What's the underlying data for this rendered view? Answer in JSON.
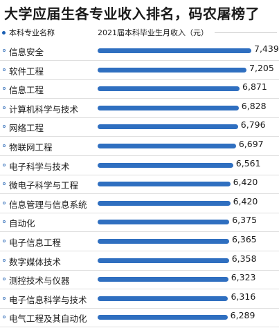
{
  "title": "大学应届生各专业收入排名，码农屠榜了",
  "header": {
    "left_label": "本科专业名称",
    "right_label": "2021届本科毕业生月收入（元）"
  },
  "colors": {
    "bar": "#2f6fc0",
    "accent": "#1a5fb4"
  },
  "chart_data": {
    "type": "bar",
    "orientation": "horizontal",
    "title": "大学应届生各专业收入排名，码农屠榜了",
    "category_header": "本科专业名称",
    "value_header": "2021届本科毕业生月收入（元）",
    "categories": [
      "信息安全",
      "软件工程",
      "信息工程",
      "计算机科学与技术",
      "网络工程",
      "物联网工程",
      "电子科学与技术",
      "微电子科学与工程",
      "信息管理与信息系统",
      "自动化",
      "电子信息工程",
      "数字媒体技术",
      "测控技术与仪器",
      "电子信息科学与技术",
      "电气工程及其自动化"
    ],
    "values": [
      7439,
      7205,
      6871,
      6828,
      6796,
      6697,
      6561,
      6420,
      6420,
      6375,
      6365,
      6358,
      6323,
      6316,
      6289
    ],
    "value_labels": [
      "7,439",
      "7,205",
      "6,871",
      "6,828",
      "6,796",
      "6,697",
      "6,561",
      "6,420",
      "6,420",
      "6,375",
      "6,365",
      "6,358",
      "6,323",
      "6,316",
      "6,289"
    ],
    "xlim": [
      0,
      7439
    ],
    "grid": false,
    "legend": "none"
  }
}
